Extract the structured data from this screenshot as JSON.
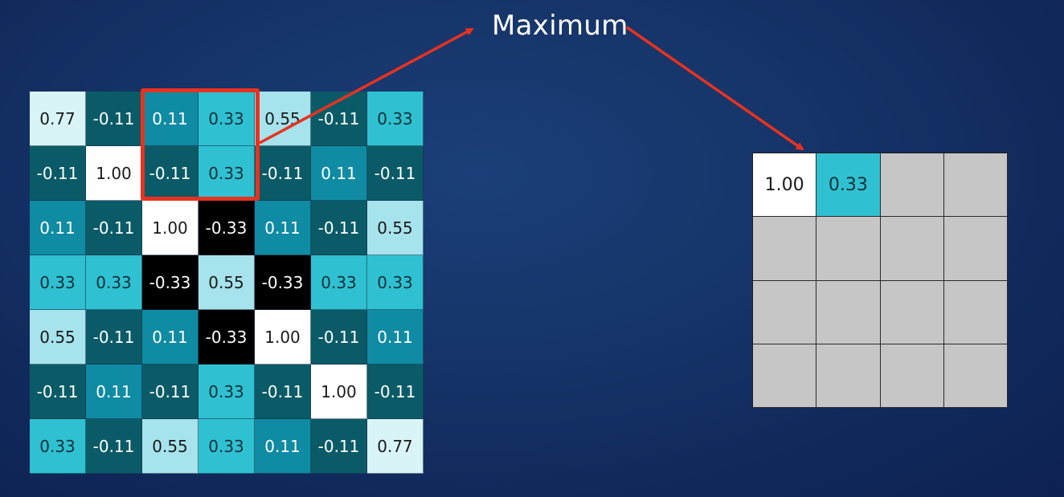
{
  "title": "Maximum",
  "colors": {
    "highlight": "#e8321f",
    "arrow": "#e8321f",
    "empty_cell": "#c6c6c6"
  },
  "input_grid": [
    [
      "0.77",
      "-0.11",
      "0.11",
      "0.33",
      "0.55",
      "-0.11",
      "0.33"
    ],
    [
      "-0.11",
      "1.00",
      "-0.11",
      "0.33",
      "-0.11",
      "0.11",
      "-0.11"
    ],
    [
      "0.11",
      "-0.11",
      "1.00",
      "-0.33",
      "0.11",
      "-0.11",
      "0.55"
    ],
    [
      "0.33",
      "0.33",
      "-0.33",
      "0.55",
      "-0.33",
      "0.33",
      "0.33"
    ],
    [
      "0.55",
      "-0.11",
      "0.11",
      "-0.33",
      "1.00",
      "-0.11",
      "0.11"
    ],
    [
      "-0.11",
      "0.11",
      "-0.11",
      "0.33",
      "-0.11",
      "1.00",
      "-0.11"
    ],
    [
      "0.33",
      "-0.11",
      "0.55",
      "0.33",
      "0.11",
      "-0.11",
      "0.77"
    ]
  ],
  "output_grid": [
    [
      "1.00",
      "0.33",
      "",
      ""
    ],
    [
      "",
      "",
      "",
      ""
    ],
    [
      "",
      "",
      "",
      ""
    ],
    [
      "",
      "",
      "",
      ""
    ]
  ]
}
